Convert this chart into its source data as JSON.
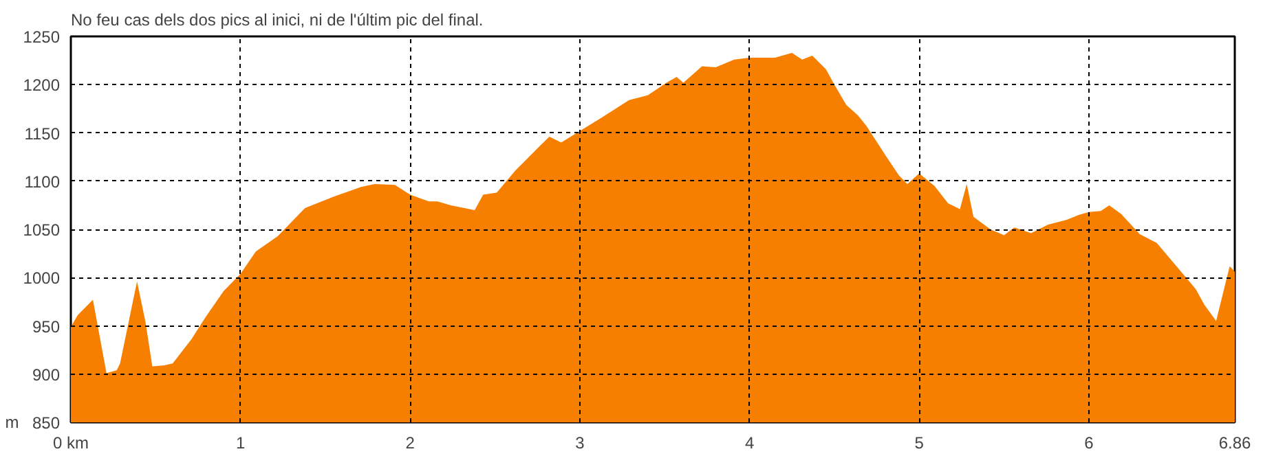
{
  "chart_data": {
    "type": "area",
    "title": "No feu cas dels dos pics al inici, ni de l'últim pic del final.",
    "ylabel": "m",
    "x": [
      0,
      0.04,
      0.13,
      0.21,
      0.27,
      0.29,
      0.39,
      0.44,
      0.48,
      0.55,
      0.6,
      0.71,
      0.79,
      0.9,
      1.0,
      1.09,
      1.22,
      1.38,
      1.55,
      1.71,
      1.79,
      1.91,
      2.0,
      2.11,
      2.16,
      2.24,
      2.38,
      2.43,
      2.51,
      2.62,
      2.75,
      2.82,
      2.89,
      3.0,
      3.13,
      3.29,
      3.4,
      3.51,
      3.57,
      3.61,
      3.72,
      3.8,
      3.91,
      4.0,
      4.15,
      4.25,
      4.31,
      4.37,
      4.45,
      4.5,
      4.57,
      4.64,
      4.69,
      4.8,
      4.88,
      4.93,
      5.0,
      5.09,
      5.17,
      5.24,
      5.28,
      5.32,
      5.42,
      5.5,
      5.56,
      5.66,
      5.76,
      5.87,
      5.94,
      6.0,
      6.07,
      6.12,
      6.19,
      6.3,
      6.4,
      6.52,
      6.63,
      6.68,
      6.75,
      6.83,
      6.86
    ],
    "series": [
      {
        "color": "#f77f00",
        "values": [
          949,
          961,
          977,
          901,
          904,
          911,
          996,
          954,
          908,
          909,
          911,
          936,
          958,
          986,
          1004,
          1027,
          1043,
          1072,
          1084,
          1094,
          1097,
          1096,
          1086,
          1079,
          1079,
          1075,
          1070,
          1086,
          1088,
          1111,
          1134,
          1146,
          1140,
          1152,
          1166,
          1184,
          1189,
          1202,
          1208,
          1202,
          1219,
          1218,
          1226,
          1228,
          1228,
          1233,
          1226,
          1230,
          1216,
          1200,
          1179,
          1168,
          1157,
          1127,
          1106,
          1097,
          1108,
          1095,
          1077,
          1071,
          1097,
          1063,
          1050,
          1044,
          1052,
          1046,
          1055,
          1060,
          1065,
          1068,
          1069,
          1075,
          1066,
          1045,
          1036,
          1011,
          988,
          972,
          955,
          1012,
          1006
        ]
      }
    ],
    "xlim": [
      0,
      6.86
    ],
    "xticks": [
      {
        "value": 0,
        "label": "0 km"
      },
      1,
      2,
      3,
      4,
      5,
      6,
      6.86
    ],
    "ylim": [
      850,
      1250
    ],
    "yticks": [
      850,
      900,
      950,
      1000,
      1050,
      1100,
      1150,
      1200,
      1250
    ],
    "grid": true
  }
}
